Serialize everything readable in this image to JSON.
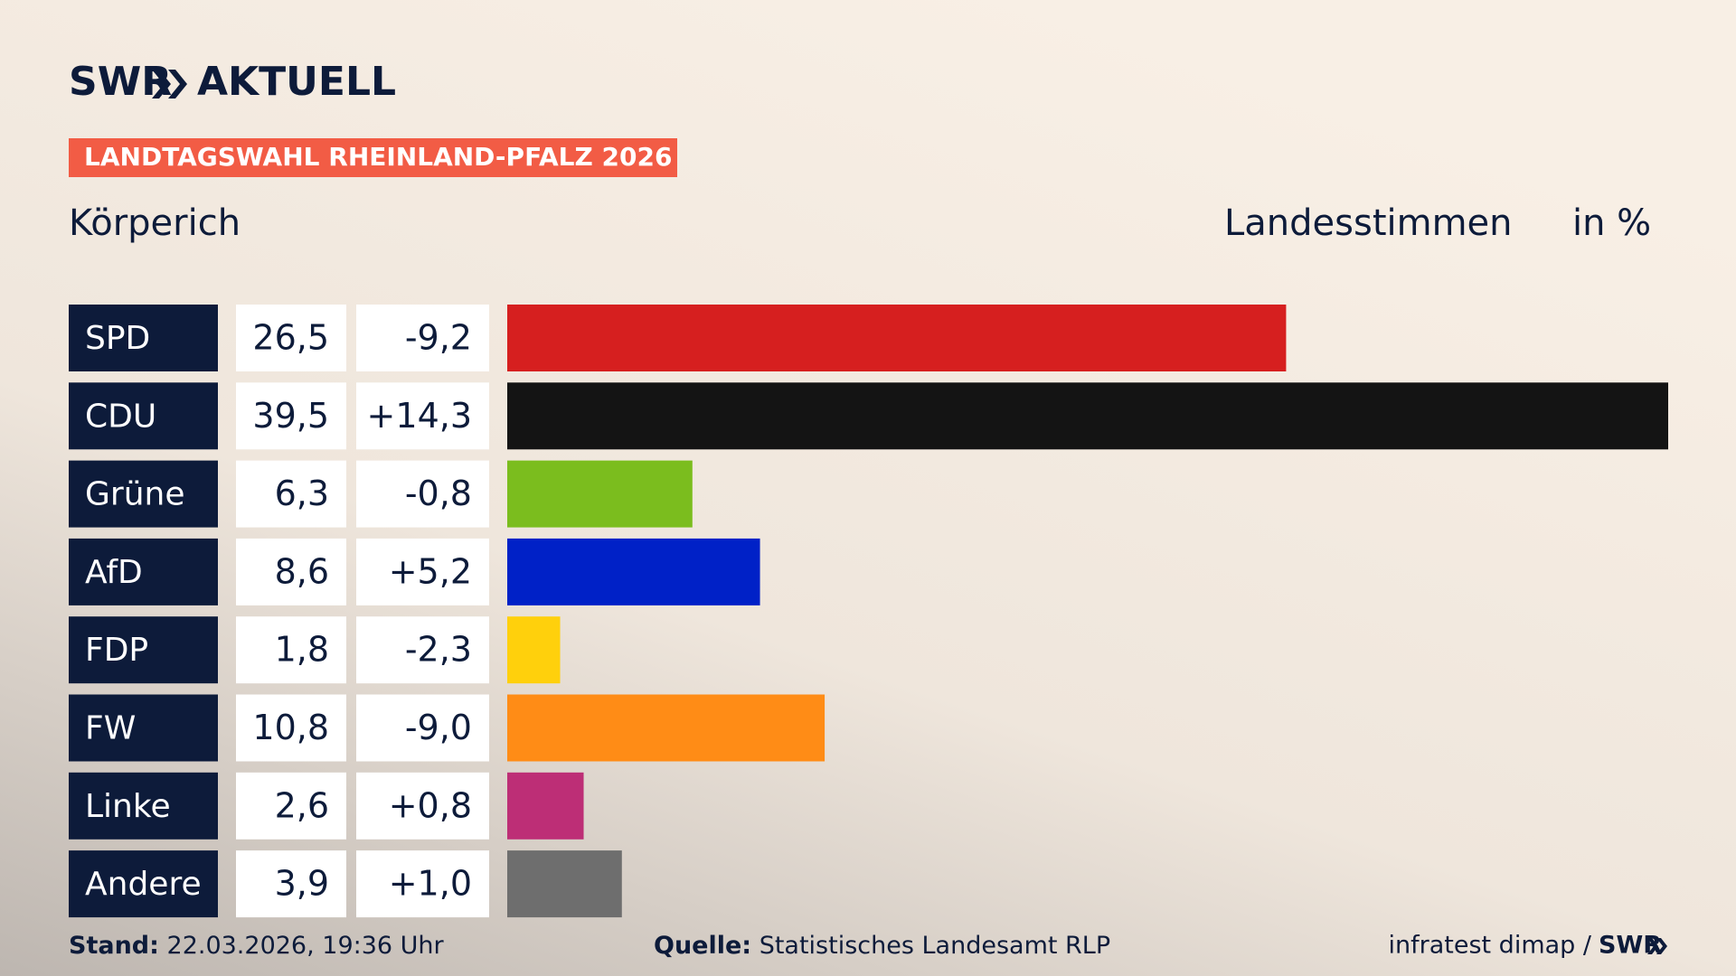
{
  "brand": {
    "name": "SWR",
    "section": "AKTUELL"
  },
  "chart_data": {
    "type": "bar",
    "title": "LANDTAGSWAHL RHEINLAND-PFALZ 2026",
    "subtitle": "Körperich",
    "value_heading": "Landesstimmen",
    "unit": "in %",
    "categories": [
      "SPD",
      "CDU",
      "Grüne",
      "AfD",
      "FDP",
      "FW",
      "Linke",
      "Andere"
    ],
    "values": [
      26.5,
      39.5,
      6.3,
      8.6,
      1.8,
      10.8,
      2.6,
      3.9
    ],
    "value_labels": [
      "26,5",
      "39,5",
      "6,3",
      "8,6",
      "1,8",
      "10,8",
      "2,6",
      "3,9"
    ],
    "changes": [
      "-9,2",
      "+14,3",
      "-0,8",
      "+5,2",
      "-2,3",
      "-9,0",
      "+0,8",
      "+1,0"
    ],
    "colors": [
      "#d61f1f",
      "#141414",
      "#7bbd1e",
      "#0021c7",
      "#ffd00c",
      "#ff8c16",
      "#bd2e76",
      "#6e6e6e"
    ]
  },
  "footer": {
    "stand_label": "Stand:",
    "stand": "22.03.2026, 19:36 Uhr",
    "source_label": "Quelle:",
    "source": "Statistisches Landesamt RLP",
    "institute": "infratest dimap /",
    "brand": "SWR"
  }
}
